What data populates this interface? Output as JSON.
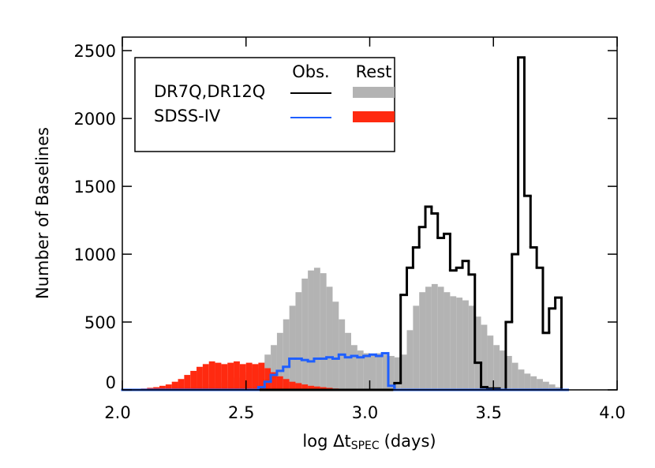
{
  "chart_data": {
    "type": "histogram",
    "xlabel": "log Δt",
    "xlabel_sub": "SPEC",
    "xlabel_unit": "(days)",
    "ylabel": "Number of Baselines",
    "xlim": [
      2.0,
      4.0
    ],
    "ylim": [
      0,
      2600
    ],
    "xticks": [
      {
        "value": 2.0,
        "label": "2.0"
      },
      2.5,
      {
        "value": 3.0,
        "label": "3.0"
      },
      3.5,
      {
        "value": 4.0,
        "label": "4.0"
      }
    ],
    "yticks": [
      0,
      500,
      1000,
      1500,
      2000,
      2500
    ],
    "bins": [
      2.0,
      2.025,
      2.05,
      2.075,
      2.1,
      2.125,
      2.15,
      2.175,
      2.2,
      2.225,
      2.25,
      2.275,
      2.3,
      2.325,
      2.35,
      2.375,
      2.4,
      2.425,
      2.45,
      2.475,
      2.5,
      2.525,
      2.55,
      2.575,
      2.6,
      2.625,
      2.65,
      2.675,
      2.7,
      2.725,
      2.75,
      2.775,
      2.8,
      2.825,
      2.85,
      2.875,
      2.9,
      2.925,
      2.95,
      2.975,
      3.0,
      3.025,
      3.05,
      3.075,
      3.1,
      3.125,
      3.15,
      3.175,
      3.2,
      3.225,
      3.25,
      3.275,
      3.3,
      3.325,
      3.35,
      3.375,
      3.4,
      3.425,
      3.45,
      3.475,
      3.5,
      3.525,
      3.55,
      3.575,
      3.6,
      3.625,
      3.65,
      3.675,
      3.7,
      3.725,
      3.75,
      3.775,
      3.8
    ],
    "groups": [
      {
        "name": "DR7Q,DR12Q",
        "series": [
          {
            "name": "Obs.",
            "style": "step",
            "color": "#000000",
            "values": [
              0,
              0,
              0,
              0,
              0,
              0,
              0,
              0,
              0,
              0,
              0,
              0,
              0,
              0,
              0,
              0,
              0,
              0,
              0,
              0,
              0,
              0,
              0,
              0,
              0,
              0,
              0,
              0,
              0,
              0,
              0,
              0,
              0,
              0,
              0,
              0,
              0,
              0,
              0,
              0,
              0,
              0,
              0,
              0,
              50,
              700,
              900,
              1050,
              1200,
              1350,
              1300,
              1120,
              1150,
              880,
              900,
              950,
              850,
              200,
              20,
              10,
              10,
              0,
              500,
              1000,
              2450,
              1430,
              1050,
              900,
              420,
              600,
              680,
              0
            ]
          },
          {
            "name": "Rest",
            "style": "bar",
            "color": "#b3b3b3",
            "values": [
              0,
              0,
              0,
              0,
              0,
              0,
              0,
              0,
              5,
              10,
              15,
              20,
              25,
              30,
              40,
              50,
              60,
              75,
              90,
              110,
              130,
              160,
              200,
              260,
              330,
              420,
              520,
              620,
              720,
              820,
              880,
              900,
              860,
              760,
              650,
              520,
              420,
              330,
              290,
              270,
              260,
              270,
              260,
              250,
              240,
              260,
              440,
              620,
              720,
              760,
              780,
              760,
              720,
              690,
              680,
              660,
              620,
              540,
              480,
              400,
              330,
              290,
              250,
              200,
              150,
              120,
              100,
              80,
              60,
              40,
              20,
              0
            ]
          }
        ]
      },
      {
        "name": "SDSS-IV",
        "series": [
          {
            "name": "Obs.",
            "style": "step",
            "color": "#1f5fff",
            "values": [
              0,
              0,
              0,
              0,
              0,
              0,
              0,
              0,
              0,
              0,
              0,
              0,
              0,
              0,
              0,
              0,
              0,
              0,
              0,
              0,
              0,
              0,
              20,
              60,
              110,
              140,
              170,
              230,
              230,
              220,
              210,
              230,
              230,
              240,
              230,
              260,
              240,
              250,
              240,
              250,
              260,
              250,
              270,
              30,
              0,
              0,
              0,
              0,
              0,
              0,
              0,
              0,
              0,
              0,
              0,
              0,
              0,
              0,
              0,
              0,
              0,
              0,
              0,
              0,
              0,
              0,
              0,
              0,
              0,
              0,
              0,
              0
            ]
          },
          {
            "name": "Rest",
            "style": "bar",
            "color": "#ff2a10",
            "values": [
              0,
              0,
              5,
              10,
              15,
              20,
              30,
              40,
              60,
              80,
              110,
              140,
              170,
              190,
              210,
              200,
              190,
              200,
              210,
              190,
              200,
              190,
              200,
              160,
              130,
              100,
              80,
              60,
              50,
              40,
              30,
              25,
              20,
              15,
              10,
              5,
              0,
              0,
              0,
              0,
              0,
              0,
              0,
              0,
              0,
              0,
              0,
              0,
              0,
              0,
              0,
              0,
              0,
              0,
              0,
              0,
              0,
              0,
              0,
              0,
              0,
              0,
              0,
              0,
              0,
              0,
              0,
              0,
              0,
              0,
              0,
              0
            ]
          }
        ]
      }
    ]
  }
}
